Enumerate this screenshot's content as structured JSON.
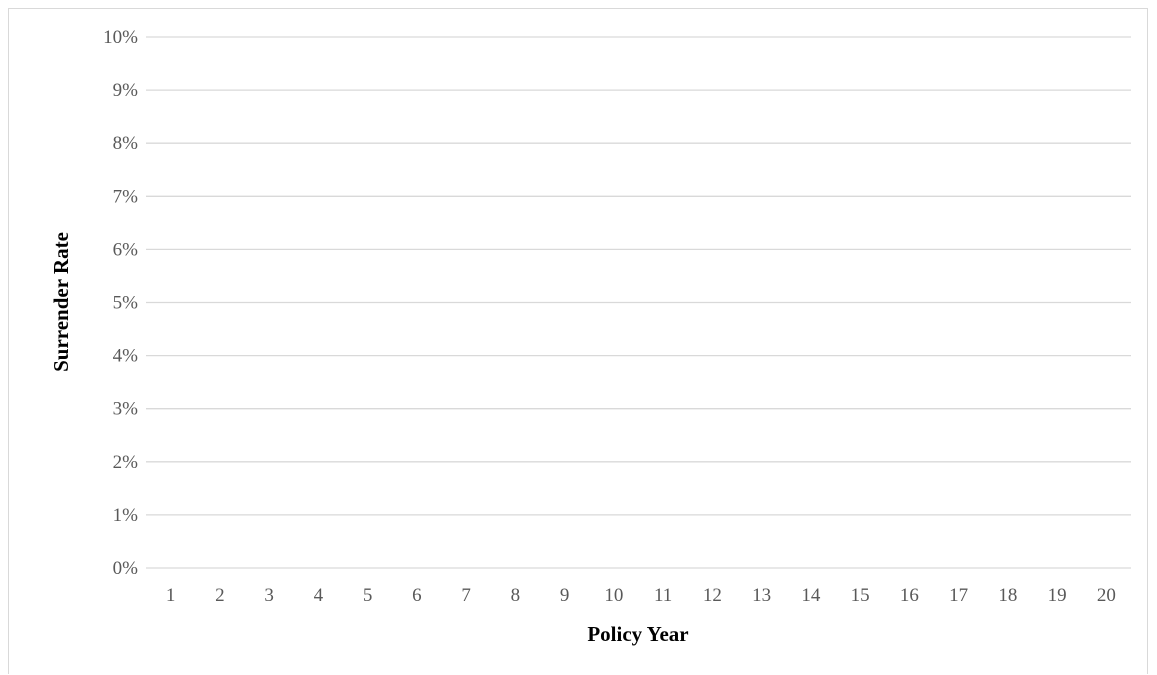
{
  "chart_data": {
    "type": "line",
    "title": "",
    "xlabel": "Policy Year",
    "ylabel": "Surrender Rate",
    "categories": [
      "1",
      "2",
      "3",
      "4",
      "5",
      "6",
      "7",
      "8",
      "9",
      "10",
      "11",
      "12",
      "13",
      "14",
      "15",
      "16",
      "17",
      "18",
      "19",
      "20"
    ],
    "y_ticks": [
      "0%",
      "1%",
      "2%",
      "3%",
      "4%",
      "5%",
      "6%",
      "7%",
      "8%",
      "9%",
      "10%"
    ],
    "ylim": [
      0,
      0.1
    ],
    "grid": "horizontal",
    "series": [],
    "colors": {
      "gridline": "#d9d9d9",
      "tick_text": "#595959",
      "axis_title": "#000000",
      "frame": "#d9d9d9"
    }
  }
}
